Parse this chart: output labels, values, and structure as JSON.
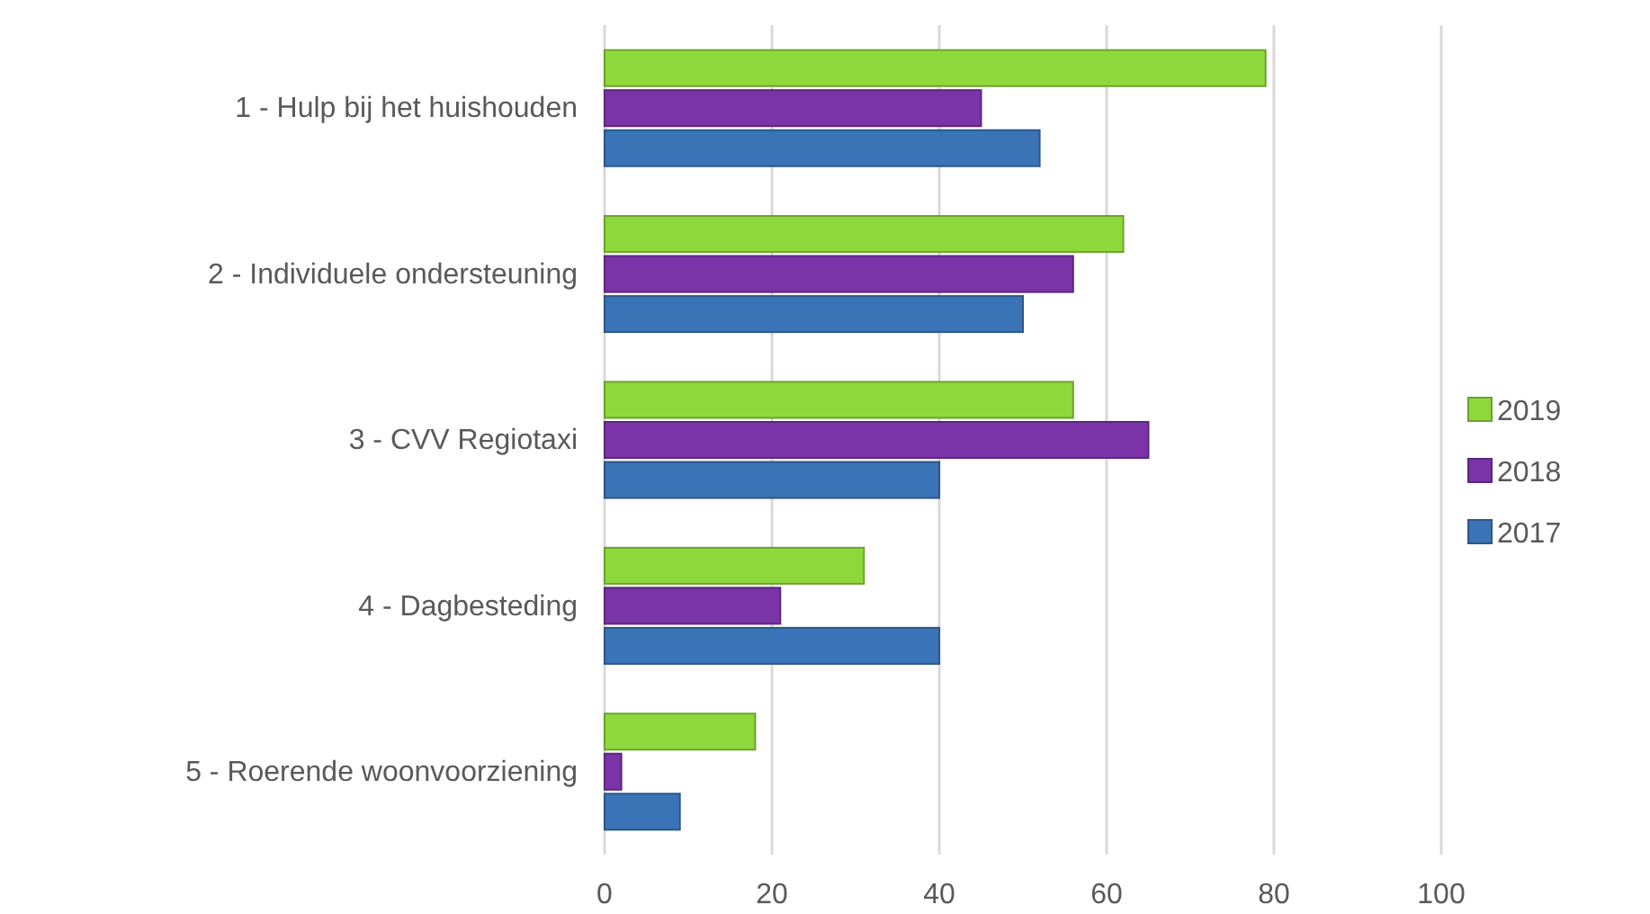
{
  "chart_data": {
    "type": "bar",
    "orientation": "horizontal",
    "categories": [
      "1 - Hulp bij het huishouden",
      "2 - Individuele ondersteuning",
      "3 - CVV Regiotaxi",
      "4 - Dagbesteding",
      "5 - Roerende woonvoorziening"
    ],
    "series": [
      {
        "name": "2019",
        "color": "#8fd83c",
        "values": [
          79,
          62,
          56,
          31,
          18
        ]
      },
      {
        "name": "2018",
        "color": "#7a34a8",
        "values": [
          45,
          56,
          65,
          21,
          2
        ]
      },
      {
        "name": "2017",
        "color": "#3a74b6",
        "values": [
          52,
          50,
          40,
          40,
          9
        ]
      }
    ],
    "xlim": [
      0,
      100
    ],
    "xticks": [
      0,
      20,
      40,
      60,
      80,
      100
    ],
    "grid": "x",
    "legend": "right"
  }
}
